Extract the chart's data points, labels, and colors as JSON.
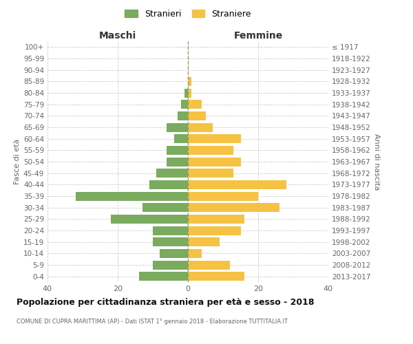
{
  "age_groups": [
    "100+",
    "95-99",
    "90-94",
    "85-89",
    "80-84",
    "75-79",
    "70-74",
    "65-69",
    "60-64",
    "55-59",
    "50-54",
    "45-49",
    "40-44",
    "35-39",
    "30-34",
    "25-29",
    "20-24",
    "15-19",
    "10-14",
    "5-9",
    "0-4"
  ],
  "birth_years": [
    "≤ 1917",
    "1918-1922",
    "1923-1927",
    "1928-1932",
    "1933-1937",
    "1938-1942",
    "1943-1947",
    "1948-1952",
    "1953-1957",
    "1958-1962",
    "1963-1967",
    "1968-1972",
    "1973-1977",
    "1978-1982",
    "1983-1987",
    "1988-1992",
    "1993-1997",
    "1998-2002",
    "2003-2007",
    "2008-2012",
    "2013-2017"
  ],
  "maschi": [
    0,
    0,
    0,
    0,
    1,
    2,
    3,
    6,
    4,
    6,
    6,
    9,
    11,
    32,
    13,
    22,
    10,
    10,
    8,
    10,
    14
  ],
  "femmine": [
    0,
    0,
    0,
    1,
    1,
    4,
    5,
    7,
    15,
    13,
    15,
    13,
    28,
    20,
    26,
    16,
    15,
    9,
    4,
    12,
    16
  ],
  "color_maschi": "#7aab5e",
  "color_femmine": "#f5c243",
  "title": "Popolazione per cittadinanza straniera per età e sesso - 2018",
  "subtitle": "COMUNE DI CUPRA MARITTIMA (AP) - Dati ISTAT 1° gennaio 2018 - Elaborazione TUTTITALIA.IT",
  "label_maschi": "Maschi",
  "label_femmine": "Femmine",
  "ylabel_left": "Fasce di età",
  "ylabel_right": "Anni di nascita",
  "legend_maschi": "Stranieri",
  "legend_femmine": "Straniere",
  "xlim": 40,
  "background_color": "#ffffff",
  "grid_color": "#cccccc"
}
